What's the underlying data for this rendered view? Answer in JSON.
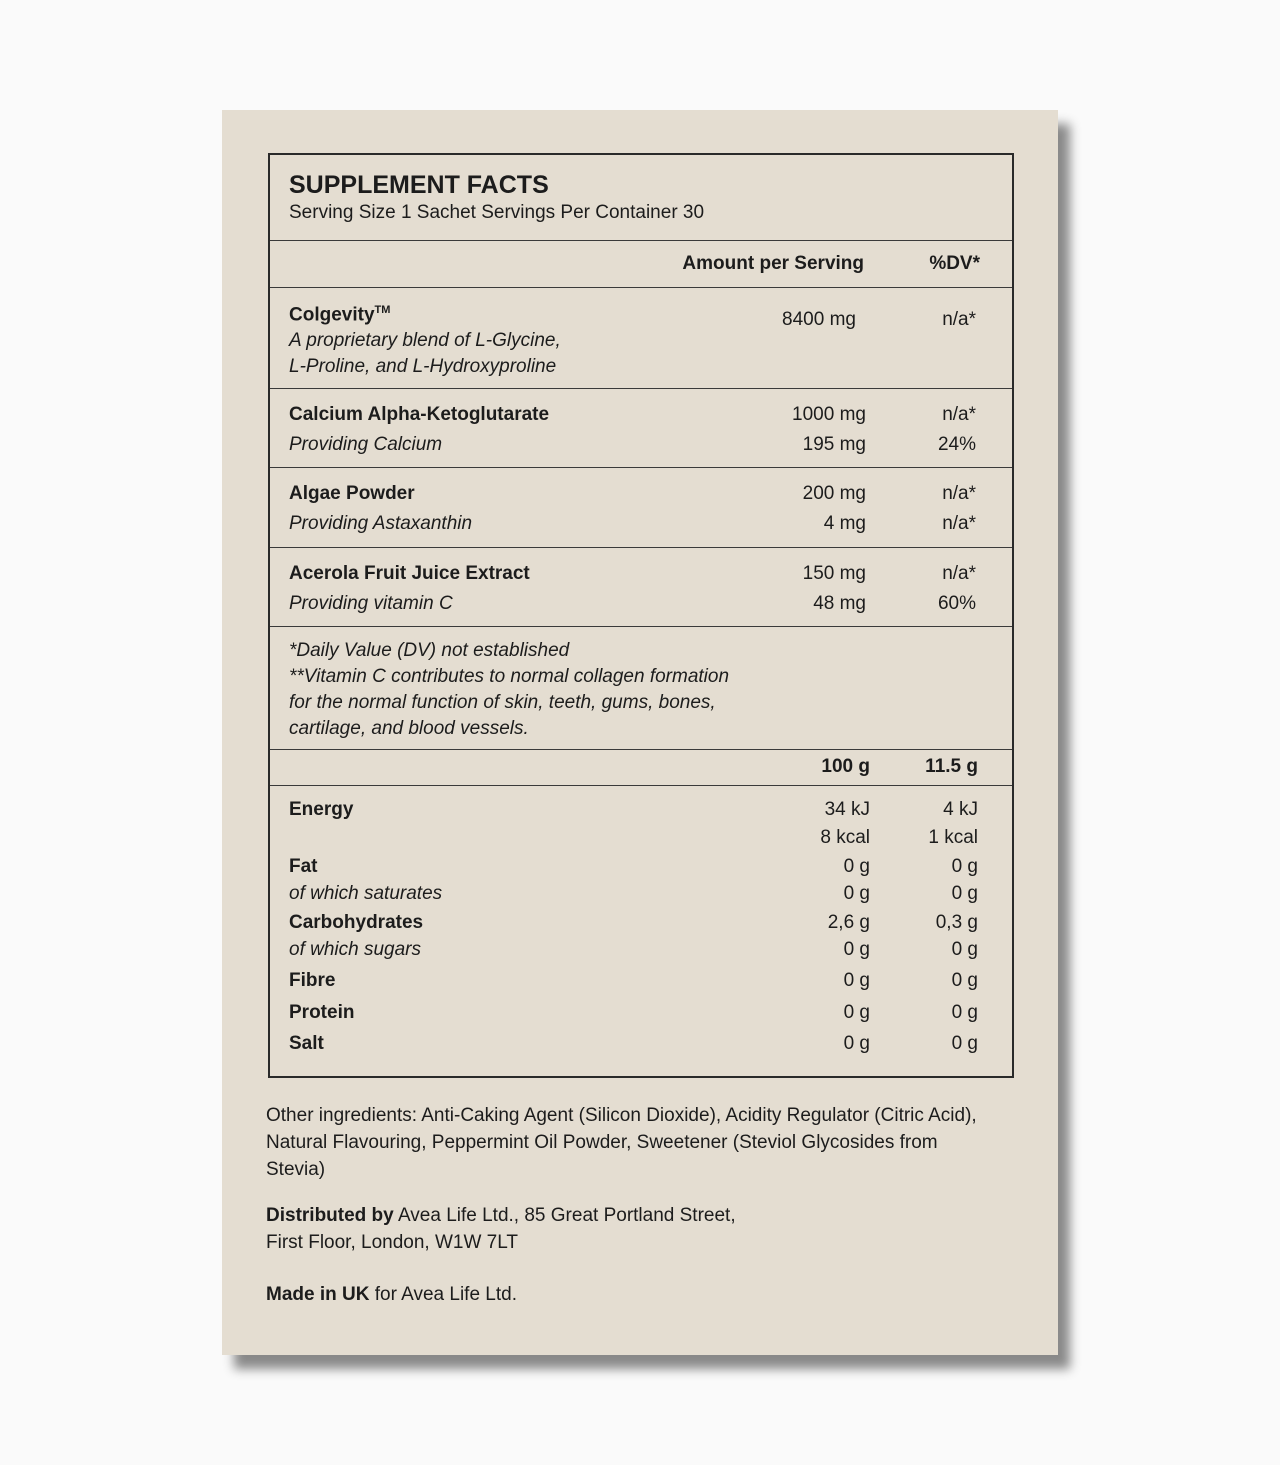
{
  "title": "SUPPLEMENT FACTS",
  "serving": "Serving Size 1 Sachet  Servings Per Container 30",
  "columns": {
    "amount": "Amount per Serving",
    "dv": "%DV*"
  },
  "ingredients": [
    {
      "name": "Colgevity",
      "tm": "TM",
      "amount": "8400 mg",
      "dv": "n/a*",
      "desc1": "A proprietary blend of L-Glycine,",
      "desc2": "L-Proline, and L-Hydroxyproline"
    },
    {
      "name": "Calcium Alpha-Ketoglutarate",
      "amount": "1000 mg",
      "dv": "n/a*",
      "sub": "Providing Calcium",
      "sub_amount": "195 mg",
      "sub_dv": "24%"
    },
    {
      "name": "Algae Powder",
      "amount": "200 mg",
      "dv": "n/a*",
      "sub": "Providing Astaxanthin",
      "sub_amount": "4 mg",
      "sub_dv": "n/a*"
    },
    {
      "name": "Acerola Fruit Juice Extract",
      "amount": "150 mg",
      "dv": "n/a*",
      "sub": "Providing vitamin C",
      "sub_amount": "48 mg",
      "sub_dv": "60%"
    }
  ],
  "notes": [
    "*Daily Value (DV) not established",
    "**Vitamin C contributes to normal collagen formation",
    "for the normal function of skin, teeth, gums, bones,",
    "cartilage, and blood vessels."
  ],
  "nutrition_header": {
    "per100": "100 g",
    "perServing": "11.5 g"
  },
  "nutrition": [
    {
      "label": "Energy",
      "bold": true,
      "v1": "34 kJ",
      "v2": "4 kJ"
    },
    {
      "label": "",
      "v1": "8 kcal",
      "v2": "1 kcal"
    },
    {
      "label": "Fat",
      "bold": true,
      "v1": "0 g",
      "v2": "0 g"
    },
    {
      "label": "of which saturates",
      "v1": "0 g",
      "v2": "0 g"
    },
    {
      "label": "Carbohydrates",
      "bold": true,
      "v1": "2,6 g",
      "v2": "0,3 g"
    },
    {
      "label": "of which sugars",
      "v1": "0 g",
      "v2": "0 g"
    },
    {
      "label": "Fibre",
      "bold": true,
      "v1": "0 g",
      "v2": "0 g"
    },
    {
      "label": "Protein",
      "bold": true,
      "v1": "0 g",
      "v2": "0 g"
    },
    {
      "label": "Salt",
      "bold": true,
      "v1": "0 g",
      "v2": "0 g"
    }
  ],
  "other_ingredients": "Other ingredients: Anti-Caking Agent (Silicon Dioxide), Acidity Regulator (Citric Acid), Natural Flavouring, Peppermint Oil Powder, Sweetener (Steviol Glycosides from Stevia)",
  "distributed": {
    "label": "Distributed by",
    "text1": " Avea Life Ltd., 85 Great Portland Street,",
    "text2": "First Floor, London, W1W 7LT"
  },
  "made": {
    "label": "Made in UK",
    "text": " for Avea Life Ltd."
  }
}
